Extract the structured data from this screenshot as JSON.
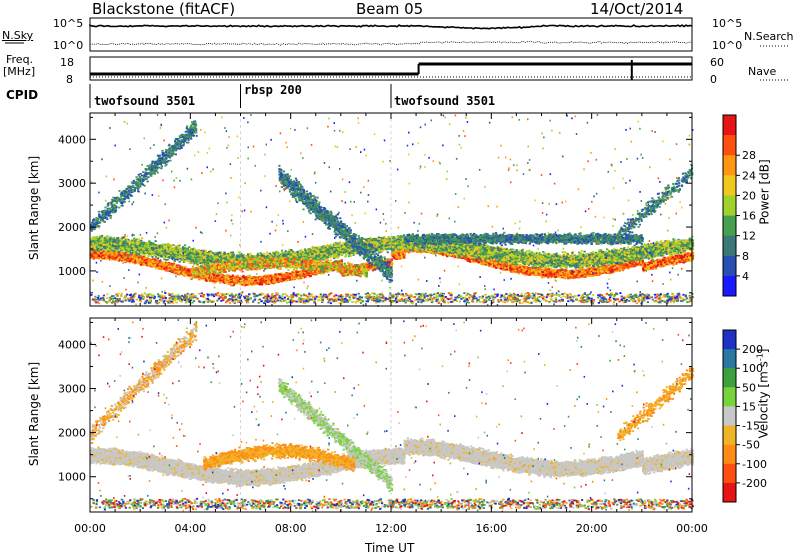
{
  "header": {
    "title": "Blackstone (fitACF)",
    "beam": "Beam 05",
    "date": "14/Oct/2014"
  },
  "top_panel": {
    "left_label": "N.Sky",
    "right_label": "N.Search",
    "ticks_left": [
      "10^5",
      "10^0"
    ],
    "ticks_right": [
      "10^5",
      "10^0"
    ]
  },
  "freq_panel": {
    "left_label_1": "Freq.",
    "left_label_2": "[MHz]",
    "ticks_left": [
      "18",
      "8"
    ],
    "ticks_right": [
      "60",
      "0"
    ],
    "right_label": "Nave"
  },
  "cpid": {
    "label": "CPID",
    "segments": [
      {
        "name": "twofsound 3501",
        "start_h": 0,
        "end_h": 6
      },
      {
        "name": "rbsp 200",
        "start_h": 6,
        "end_h": 12
      },
      {
        "name": "twofsound 3501",
        "start_h": 12,
        "end_h": 24
      }
    ]
  },
  "chart_data": [
    {
      "type": "heatmap",
      "title": "",
      "ylabel": "Slant Range [km]",
      "xlabel": "",
      "xlim": [
        0,
        24
      ],
      "ylim": [
        200,
        4600
      ],
      "yticks": [
        1000,
        2000,
        3000,
        4000
      ],
      "colorbar": {
        "label": "Power [dB]",
        "ticks": [
          "4",
          "8",
          "12",
          "16",
          "20",
          "24",
          "28"
        ],
        "colors": [
          "#1a1aff",
          "#2850b4",
          "#3c7878",
          "#46a050",
          "#a0d22c",
          "#f0c81e",
          "#ff9614",
          "#ff5010",
          "#e61414"
        ]
      },
      "features": [
        {
          "desc_start_h": 0,
          "desc_end_h": 24,
          "range_km_min": 900,
          "range_km_max": 2000
        }
      ]
    },
    {
      "type": "heatmap",
      "title": "",
      "ylabel": "Slant Range [km]",
      "xlabel": "Time UT",
      "xlim": [
        0,
        24
      ],
      "ylim": [
        200,
        4600
      ],
      "yticks": [
        1000,
        2000,
        3000,
        4000
      ],
      "xticks": [
        "00:00",
        "04:00",
        "08:00",
        "12:00",
        "16:00",
        "20:00",
        "00:00"
      ],
      "colorbar": {
        "label": "Velocity [m s^-1]",
        "ticks": [
          "200",
          "100",
          "50",
          "15",
          "-15",
          "-50",
          "-100",
          "-200"
        ],
        "colors": [
          "#1e32c8",
          "#2878a0",
          "#3ca03c",
          "#78d23c",
          "#c8c8c8",
          "#f0b428",
          "#ff8c14",
          "#ff5014",
          "#e61414"
        ]
      }
    }
  ]
}
